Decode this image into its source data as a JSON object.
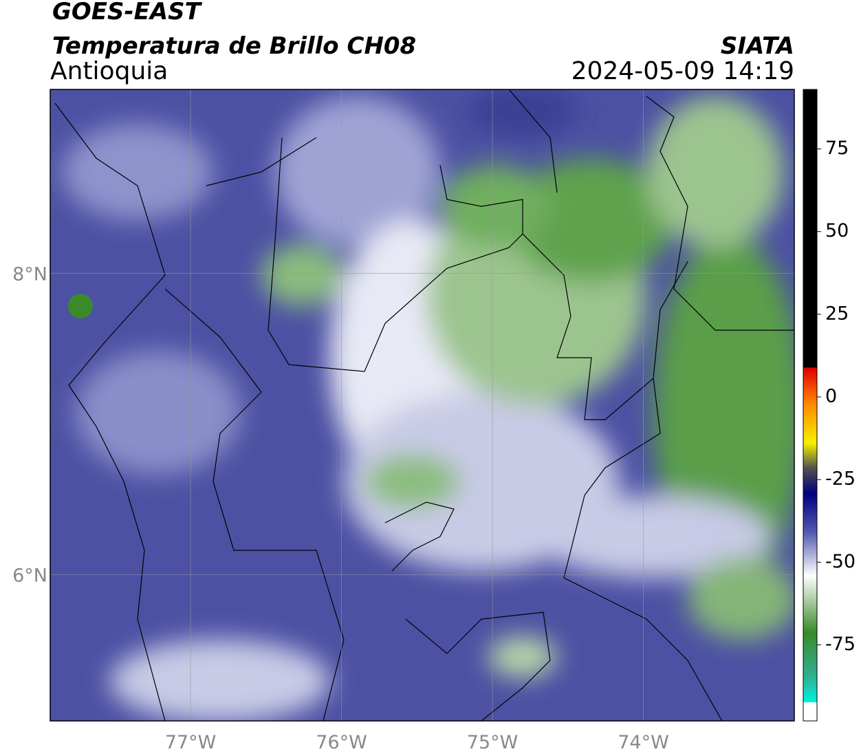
{
  "header": {
    "satellite": "GOES-EAST",
    "product": "Temperatura de Brillo CH08",
    "region": "Antioquia",
    "source": "SIATA",
    "datetime": "2024-05-09 14:19"
  },
  "map": {
    "xlim": [
      -77.93,
      -73.0
    ],
    "ylim": [
      5.03,
      9.22
    ],
    "xticks": [
      {
        "value": -77,
        "label": "77°W"
      },
      {
        "value": -76,
        "label": "76°W"
      },
      {
        "value": -75,
        "label": "75°W"
      },
      {
        "value": -74,
        "label": "74°W"
      }
    ],
    "yticks": [
      {
        "value": 8,
        "label": "8°N"
      },
      {
        "value": 6,
        "label": "6°N"
      }
    ],
    "grid": true
  },
  "colorbar": {
    "lim": [
      -98,
      93
    ],
    "ticks": [
      75,
      50,
      25,
      0,
      -25,
      -50,
      -75
    ]
  }
}
